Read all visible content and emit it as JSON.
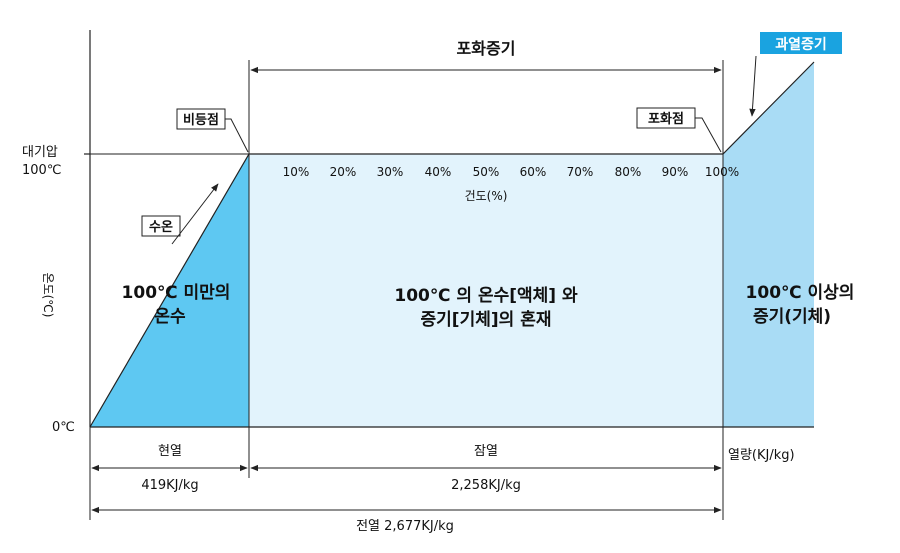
{
  "colors": {
    "solid_blue": "#5ec8f2",
    "light_region": "#e2f3fc",
    "right_region": "#a9dcf5",
    "badge_bg": "#1aa3e0",
    "line": "#222222"
  },
  "title": "포화증기",
  "superheated_badge": "과열증기",
  "callouts": {
    "boiling_point": "비등점",
    "saturation_point": "포화점",
    "water_temp": "수온"
  },
  "y_axis": {
    "label": "온도(℃)",
    "tick_atm": "대기압",
    "tick_100": "100℃",
    "tick_0": "0℃"
  },
  "dryness": {
    "ticks": [
      "10%",
      "20%",
      "30%",
      "40%",
      "50%",
      "60%",
      "70%",
      "80%",
      "90%",
      "100%"
    ],
    "label": "건도(%)"
  },
  "regions": {
    "left": [
      "100℃ 미만의",
      "온수"
    ],
    "middle": [
      "100℃ 의 온수[액체] 와",
      "증기[기체]의 혼재"
    ],
    "right": [
      "100℃ 이상의",
      "증기(기체)"
    ]
  },
  "heat": {
    "sensible_label": "현열",
    "sensible_value": "419KJ/kg",
    "latent_label": "잠열",
    "latent_value": "2,258KJ/kg",
    "heat_label": "열량(KJ/kg)",
    "total_label": "전열 2,677KJ/kg"
  }
}
